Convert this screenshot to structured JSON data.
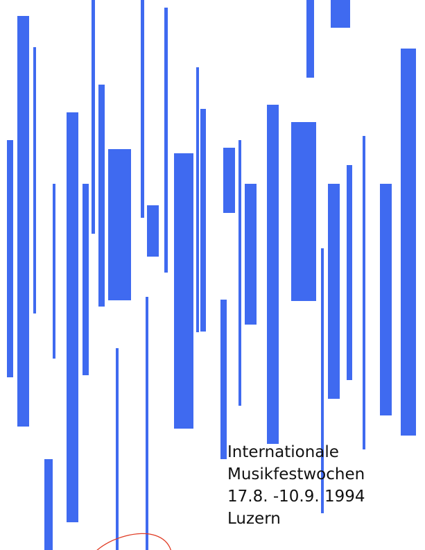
{
  "colors": {
    "background": "#ffffff",
    "bars": "#3f6af0",
    "text": "#111111",
    "arc": "#e03a22"
  },
  "poster": {
    "line_1": "Internationale",
    "line_2": "Musikfestwochen",
    "line_3": "17.8. -10.9. 1994",
    "line_4": "Luzern"
  }
}
